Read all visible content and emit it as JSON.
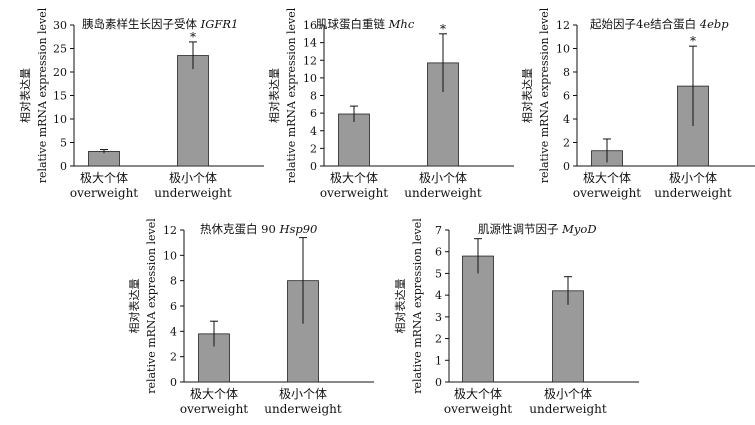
{
  "chart_data": [
    {
      "type": "bar",
      "title": "胰岛素样生长因子受体",
      "gene": "IGFR1",
      "ylabel": [
        "相对表达量",
        "relative mRNA expression level"
      ],
      "ylim": [
        0,
        30
      ],
      "yticks": [
        0,
        5,
        10,
        15,
        20,
        25,
        30
      ],
      "categories": [
        [
          "极大个体",
          "overweight"
        ],
        [
          "极小个体",
          "underweight"
        ]
      ],
      "values": [
        3.1,
        23.5
      ],
      "errors": [
        0.4,
        2.9
      ],
      "annotations": [
        "",
        "*"
      ]
    },
    {
      "type": "bar",
      "title": "肌球蛋白重链",
      "gene": "Mhc",
      "ylabel": [
        "相对表达量",
        "relative mRNA expression level"
      ],
      "ylim": [
        0,
        16
      ],
      "yticks": [
        0,
        2,
        4,
        6,
        8,
        10,
        12,
        14,
        16
      ],
      "categories": [
        [
          "极大个体",
          "overweight"
        ],
        [
          "极小个体",
          "underweight"
        ]
      ],
      "values": [
        5.9,
        11.7
      ],
      "errors": [
        0.9,
        3.3
      ],
      "annotations": [
        "",
        "*"
      ]
    },
    {
      "type": "bar",
      "title": "起始因子4e结合蛋白",
      "gene": "4ebp",
      "ylabel": [
        "相对表达量",
        "relative mRNA expression level"
      ],
      "ylim": [
        0,
        12
      ],
      "yticks": [
        0,
        2,
        4,
        6,
        8,
        10,
        12
      ],
      "categories": [
        [
          "极大个体",
          "overweight"
        ],
        [
          "极小个体",
          "underweight"
        ]
      ],
      "values": [
        1.3,
        6.8
      ],
      "errors": [
        1.0,
        3.4
      ],
      "annotations": [
        "",
        "*"
      ]
    },
    {
      "type": "bar",
      "title": "热休克蛋白 90",
      "gene": "Hsp90",
      "ylabel": [
        "相对表达量",
        "relative mRNA expression level"
      ],
      "ylim": [
        0,
        12
      ],
      "yticks": [
        0,
        2,
        4,
        6,
        8,
        10,
        12
      ],
      "categories": [
        [
          "极大个体",
          "overweight"
        ],
        [
          "极小个体",
          "underweight"
        ]
      ],
      "values": [
        3.8,
        8.0
      ],
      "errors": [
        1.0,
        3.4
      ],
      "annotations": [
        "",
        ""
      ]
    },
    {
      "type": "bar",
      "title": "肌源性调节因子",
      "gene": "MyoD",
      "ylabel": [
        "相对表达量",
        "relative mRNA expression level"
      ],
      "ylim": [
        0,
        7
      ],
      "yticks": [
        0,
        1,
        2,
        3,
        4,
        5,
        6,
        7
      ],
      "categories": [
        [
          "极大个体",
          "overweight"
        ],
        [
          "极小个体",
          "underweight"
        ]
      ],
      "values": [
        5.8,
        4.2
      ],
      "errors": [
        0.8,
        0.65
      ],
      "annotations": [
        "",
        ""
      ]
    }
  ]
}
